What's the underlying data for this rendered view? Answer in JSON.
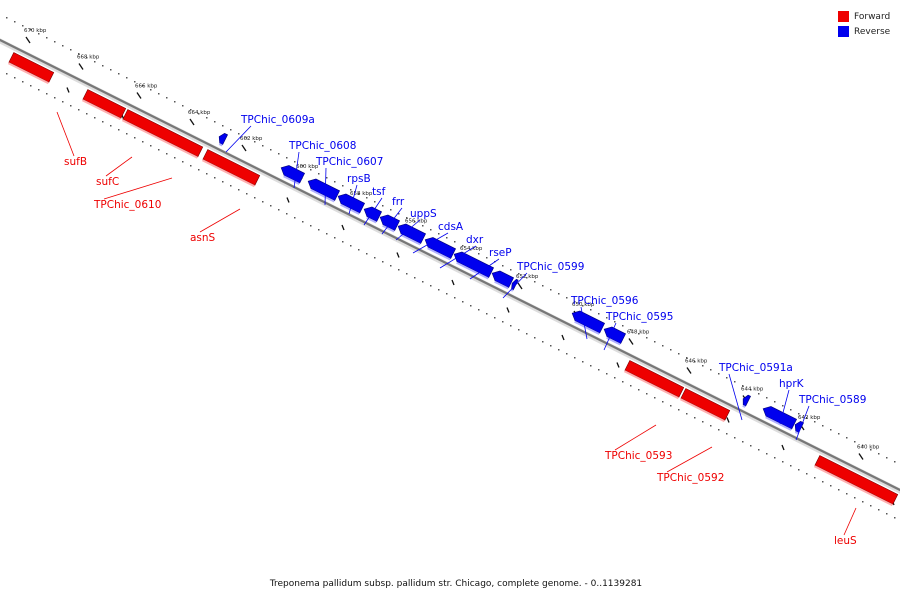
{
  "caption": "Treponema pallidum subsp. pallidum str. Chicago, complete genome. - 0..1139281",
  "legend": [
    {
      "label": "Forward",
      "color": "#ee0000"
    },
    {
      "label": "Reverse",
      "color": "#0000ee"
    }
  ],
  "colors": {
    "forward": "#ee0000",
    "reverse": "#0000ee",
    "backbone": "#777777"
  },
  "ticks": [
    "670 kbp",
    "668 kbp",
    "666 kbp",
    "664 kbp",
    "662 kbp",
    "660 kbp",
    "658 kbp",
    "656 kbp",
    "654 kbp",
    "652 kbp",
    "650 kbp",
    "648 kbp",
    "646 kbp",
    "644 kbp",
    "642 kbp",
    "640 kbp"
  ],
  "genes": [
    {
      "name": "sufB",
      "strand": "forward"
    },
    {
      "name": "sufC",
      "strand": "forward"
    },
    {
      "name": "TPChic_0610",
      "strand": "forward"
    },
    {
      "name": "asnS",
      "strand": "forward"
    },
    {
      "name": "TPChic_0609a",
      "strand": "reverse"
    },
    {
      "name": "TPChic_0608",
      "strand": "reverse"
    },
    {
      "name": "TPChic_0607",
      "strand": "reverse"
    },
    {
      "name": "rpsB",
      "strand": "reverse"
    },
    {
      "name": "tsf",
      "strand": "reverse"
    },
    {
      "name": "frr",
      "strand": "reverse"
    },
    {
      "name": "uppS",
      "strand": "reverse"
    },
    {
      "name": "cdsA",
      "strand": "reverse"
    },
    {
      "name": "dxr",
      "strand": "reverse"
    },
    {
      "name": "rseP",
      "strand": "reverse"
    },
    {
      "name": "TPChic_0599",
      "strand": "reverse"
    },
    {
      "name": "TPChic_0596",
      "strand": "reverse"
    },
    {
      "name": "TPChic_0595",
      "strand": "reverse"
    },
    {
      "name": "TPChic_0593",
      "strand": "forward"
    },
    {
      "name": "TPChic_0592",
      "strand": "forward"
    },
    {
      "name": "TPChic_0591a",
      "strand": "reverse"
    },
    {
      "name": "hprK",
      "strand": "reverse"
    },
    {
      "name": "TPChic_0589",
      "strand": "reverse"
    },
    {
      "name": "leuS",
      "strand": "forward"
    }
  ]
}
